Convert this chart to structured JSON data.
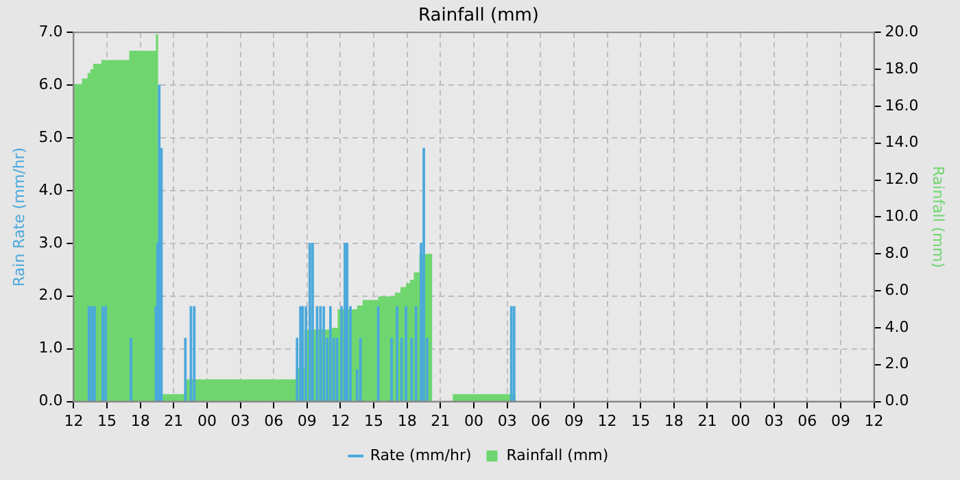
{
  "chart_data": {
    "type": "bar",
    "title": "Rainfall (mm)",
    "ylabel": "Rain Rate (mm/hr)",
    "y2label": "Rainfall (mm)",
    "xlim": [
      12,
      84
    ],
    "xticks": [
      {
        "value": 12,
        "label": "12"
      },
      {
        "value": 15,
        "label": "15"
      },
      {
        "value": 18,
        "label": "18"
      },
      {
        "value": 21,
        "label": "21"
      },
      {
        "value": 24,
        "label": "00"
      },
      {
        "value": 27,
        "label": "03"
      },
      {
        "value": 30,
        "label": "06"
      },
      {
        "value": 33,
        "label": "09"
      },
      {
        "value": 36,
        "label": "12"
      },
      {
        "value": 39,
        "label": "15"
      },
      {
        "value": 42,
        "label": "18"
      },
      {
        "value": 45,
        "label": "21"
      },
      {
        "value": 48,
        "label": "00"
      },
      {
        "value": 51,
        "label": "03"
      },
      {
        "value": 54,
        "label": "06"
      },
      {
        "value": 57,
        "label": "09"
      },
      {
        "value": 60,
        "label": "12"
      },
      {
        "value": 63,
        "label": "15"
      },
      {
        "value": 66,
        "label": "18"
      },
      {
        "value": 69,
        "label": "21"
      },
      {
        "value": 72,
        "label": "00"
      },
      {
        "value": 75,
        "label": "03"
      },
      {
        "value": 78,
        "label": "06"
      },
      {
        "value": 81,
        "label": "09"
      },
      {
        "value": 84,
        "label": "12"
      }
    ],
    "ylim": [
      0,
      7
    ],
    "yticks": [
      {
        "value": 0,
        "label": "0.0"
      },
      {
        "value": 1,
        "label": "1.0"
      },
      {
        "value": 2,
        "label": "2.0"
      },
      {
        "value": 3,
        "label": "3.0"
      },
      {
        "value": 4,
        "label": "4.0"
      },
      {
        "value": 5,
        "label": "5.0"
      },
      {
        "value": 6,
        "label": "6.0"
      },
      {
        "value": 7,
        "label": "7.0"
      }
    ],
    "y2lim": [
      0,
      20
    ],
    "y2ticks": [
      {
        "value": 0,
        "label": "0.0"
      },
      {
        "value": 2,
        "label": "2.0"
      },
      {
        "value": 4,
        "label": "4.0"
      },
      {
        "value": 6,
        "label": "6.0"
      },
      {
        "value": 8,
        "label": "8.0"
      },
      {
        "value": 10,
        "label": "10.0"
      },
      {
        "value": 12,
        "label": "12.0"
      },
      {
        "value": 14,
        "label": "14.0"
      },
      {
        "value": 16,
        "label": "16.0"
      },
      {
        "value": 18,
        "label": "18.0"
      },
      {
        "value": 20,
        "label": "20.0"
      }
    ],
    "grid": true,
    "legend": "bottom",
    "series": [
      {
        "name": "Rainfall (mm)",
        "type": "area",
        "axis": "y2",
        "color": "#6fd66f",
        "x": [
          12,
          12.75,
          13.25,
          13.5,
          13.75,
          14.5,
          17,
          19.4,
          19.6,
          22.1,
          32,
          32.75,
          35.25,
          35.75,
          37.5,
          38,
          39.4,
          40.9,
          41.4,
          41.9,
          42.25,
          42.6,
          43.1,
          44.25,
          46.1,
          51.75,
          70.25,
          84
        ],
        "values": [
          0,
          17.2,
          17.5,
          17.8,
          18.0,
          18.3,
          18.5,
          19.0,
          19.9,
          0.4,
          1.2,
          1.8,
          3.9,
          4.0,
          5.0,
          5.2,
          5.5,
          5.7,
          5.9,
          6.2,
          6.4,
          6.6,
          7.0,
          8.0,
          0,
          0.4,
          0,
          0
        ]
      },
      {
        "name": "Rate (mm/hr)",
        "color": "#4aa8dc",
        "x": [
          13.375,
          13.625,
          13.875,
          14.625,
          14.875,
          17.15,
          19.4,
          19.55,
          19.7,
          19.9,
          22.05,
          22.55,
          22.85,
          32.1,
          32.4,
          32.6,
          32.9,
          33.25,
          33.5,
          33.9,
          34.2,
          34.5,
          34.8,
          35.1,
          35.4,
          35.7,
          36.1,
          36.4,
          36.6,
          36.9,
          37.5,
          37.8,
          39.4,
          40.6,
          41.1,
          41.5,
          41.9,
          42.4,
          42.8,
          43.25,
          43.5,
          43.8,
          51.375,
          51.625
        ],
        "values": [
          1.8,
          1.8,
          1.8,
          1.8,
          1.8,
          1.2,
          1.8,
          3.0,
          6.0,
          4.8,
          1.2,
          1.8,
          1.8,
          1.2,
          1.8,
          1.8,
          1.8,
          3.0,
          3.0,
          1.8,
          1.8,
          1.8,
          1.2,
          1.8,
          1.2,
          1.2,
          1.8,
          3.0,
          3.0,
          1.8,
          0.6,
          1.2,
          1.8,
          1.2,
          1.8,
          1.2,
          1.8,
          1.2,
          1.8,
          3.0,
          4.8,
          1.2,
          1.8,
          1.8
        ]
      }
    ]
  }
}
